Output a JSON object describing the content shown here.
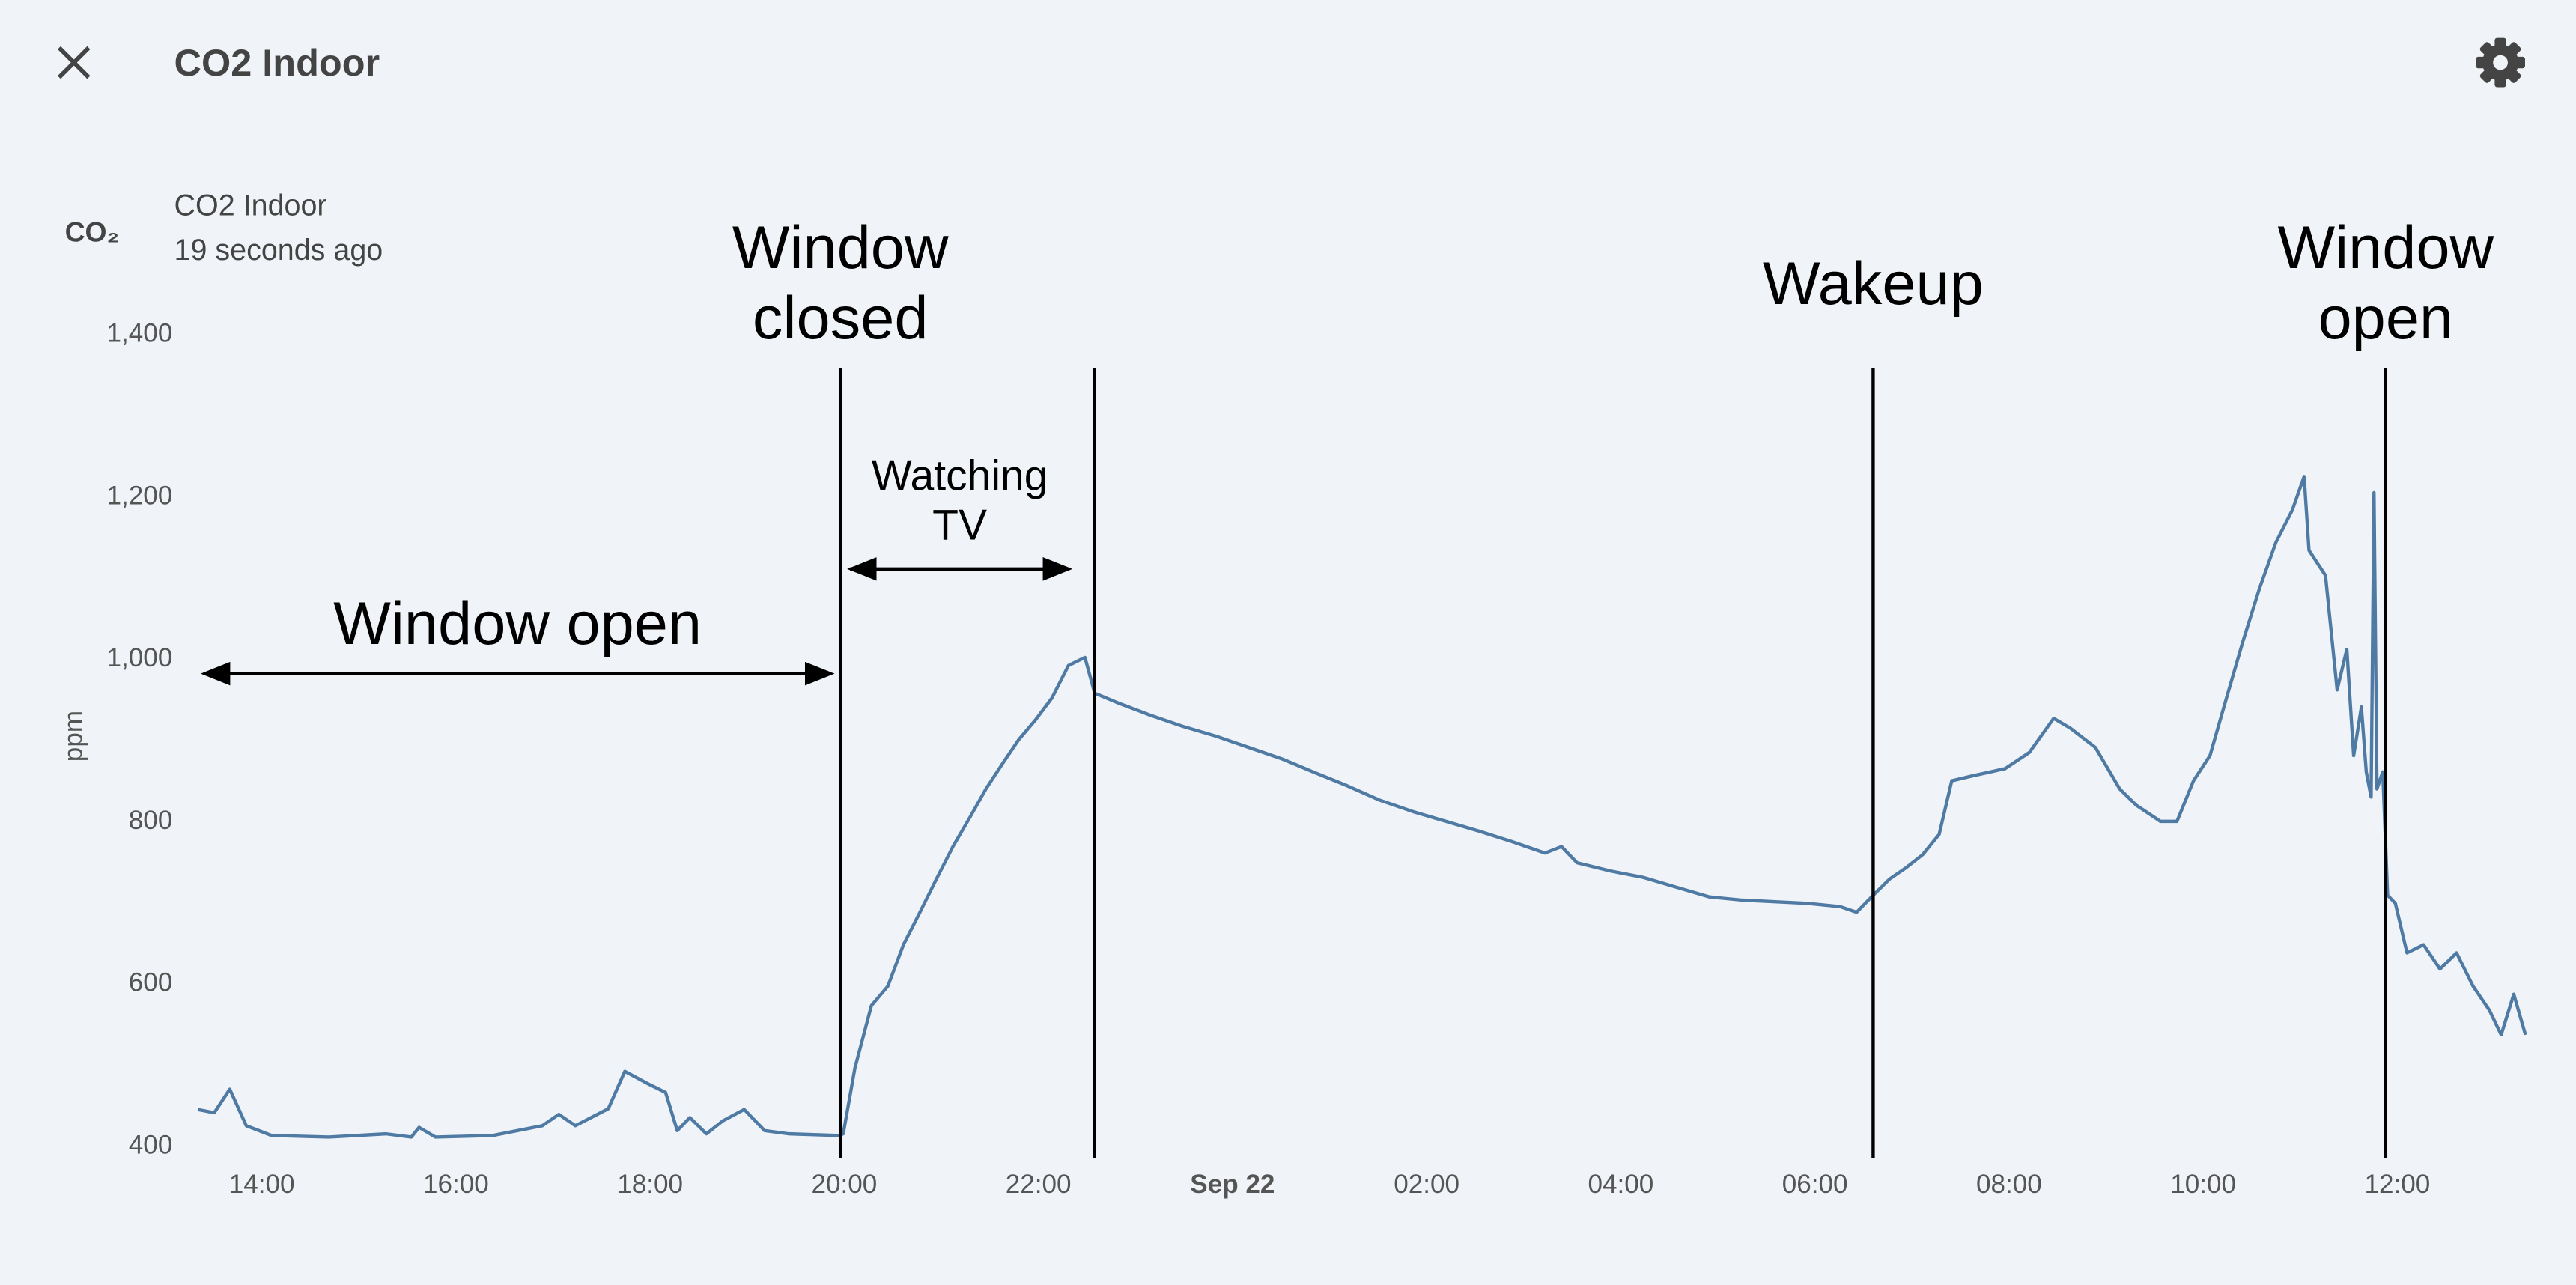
{
  "header": {
    "title": "CO2 Indoor"
  },
  "entity": {
    "icon": "CO₂",
    "name": "CO2 Indoor",
    "last_updated": "19 seconds ago"
  },
  "chart_data": {
    "type": "line",
    "ylabel": "ppm",
    "x": [
      -10.66,
      -10.49,
      -10.33,
      -10.16,
      -9.9,
      -9.31,
      -8.72,
      -8.46,
      -8.38,
      -8.21,
      -7.62,
      -7.11,
      -6.94,
      -6.77,
      -6.43,
      -6.26,
      -6.01,
      -5.84,
      -5.72,
      -5.59,
      -5.42,
      -5.25,
      -5.03,
      -4.82,
      -4.57,
      -4.06,
      -4.01,
      -3.89,
      -3.72,
      -3.55,
      -3.39,
      -3.22,
      -3.05,
      -2.88,
      -2.71,
      -2.54,
      -2.37,
      -2.2,
      -2.03,
      -1.86,
      -1.69,
      -1.52,
      -1.42,
      -1.18,
      -0.85,
      -0.51,
      -0.17,
      0.17,
      0.51,
      0.85,
      1.18,
      1.52,
      1.86,
      2.2,
      2.54,
      2.88,
      3.22,
      3.39,
      3.55,
      3.89,
      4.23,
      4.57,
      4.91,
      5.25,
      5.59,
      5.92,
      6.26,
      6.43,
      6.6,
      6.77,
      6.94,
      7.11,
      7.28,
      7.41,
      7.62,
      7.96,
      8.21,
      8.46,
      8.63,
      8.89,
      9.14,
      9.31,
      9.56,
      9.73,
      9.9,
      10.07,
      10.24,
      10.41,
      10.58,
      10.75,
      10.92,
      11.04,
      11.09,
      11.26,
      11.38,
      11.48,
      11.55,
      11.63,
      11.68,
      11.73,
      11.76,
      11.79,
      11.85,
      11.9,
      11.98,
      12.1,
      12.27,
      12.44,
      12.61,
      12.78,
      12.95,
      13.07,
      13.2,
      13.32
    ],
    "series": [
      {
        "name": "CO2 Indoor",
        "color": "#4f7aa3",
        "values": [
          442,
          438,
          467,
          422,
          410,
          408,
          412,
          408,
          420,
          408,
          410,
          422,
          436,
          422,
          443,
          489,
          473,
          463,
          416,
          432,
          412,
          428,
          442,
          416,
          412,
          410,
          412,
          493,
          570,
          594,
          645,
          685,
          726,
          766,
          801,
          837,
          868,
          898,
          922,
          949,
          989,
          999,
          955,
          943,
          928,
          914,
          902,
          888,
          874,
          857,
          841,
          823,
          809,
          797,
          785,
          772,
          758,
          766,
          746,
          736,
          728,
          716,
          704,
          700,
          698,
          696,
          692,
          685,
          706,
          726,
          740,
          756,
          781,
          847,
          853,
          862,
          882,
          924,
          912,
          888,
          837,
          817,
          797,
          797,
          847,
          878,
          949,
          1019,
          1084,
          1141,
          1181,
          1222,
          1131,
          1100,
          959,
          1009,
          878,
          938,
          858,
          827,
          1202,
          837,
          858,
          706,
          696,
          635,
          645,
          615,
          635,
          594,
          564,
          534,
          584,
          534
        ]
      }
    ],
    "xlim": [
      -10.7,
      13.35
    ],
    "ylim": [
      400,
      1400
    ],
    "yticks": [
      400,
      600,
      800,
      {
        "value": 1000,
        "label": "1,000"
      },
      {
        "value": 1200,
        "label": "1,200"
      },
      {
        "value": 1400,
        "label": "1,400"
      }
    ],
    "xticks": [
      {
        "value": -10,
        "label": "14:00"
      },
      {
        "value": -8,
        "label": "16:00"
      },
      {
        "value": -6,
        "label": "18:00"
      },
      {
        "value": -4,
        "label": "20:00"
      },
      {
        "value": -2,
        "label": "22:00"
      },
      {
        "value": 0,
        "label": "Sep 22",
        "bold": true
      },
      {
        "value": 2,
        "label": "02:00"
      },
      {
        "value": 4,
        "label": "04:00"
      },
      {
        "value": 6,
        "label": "06:00"
      },
      {
        "value": 8,
        "label": "08:00"
      },
      {
        "value": 10,
        "label": "10:00"
      },
      {
        "value": 12,
        "label": "12:00"
      }
    ],
    "annotations": {
      "vlines": [
        {
          "x": -4.04,
          "label": [
            "Window",
            "closed"
          ]
        },
        {
          "x": -1.42
        },
        {
          "x": 6.6,
          "label": [
            "Wakeup"
          ]
        },
        {
          "x": 11.88,
          "label": [
            "Window",
            "open"
          ]
        }
      ],
      "arrows": [
        {
          "x": [
            -10.6,
            -4.13
          ],
          "y": 979,
          "label": [
            "Window open"
          ]
        },
        {
          "x": [
            -3.94,
            -1.68
          ],
          "y": 1108,
          "label": [
            "Watching",
            "TV"
          ]
        }
      ]
    }
  }
}
